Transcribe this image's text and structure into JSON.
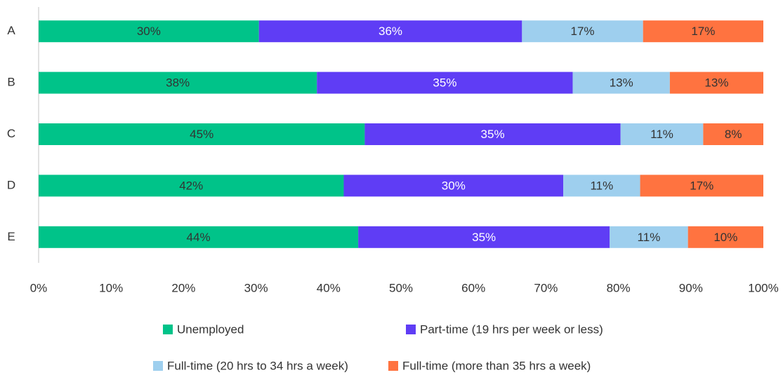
{
  "chart_data": {
    "type": "stacked-barh",
    "categories": [
      "A",
      "B",
      "C",
      "D",
      "E"
    ],
    "series": [
      {
        "name": "Unemployed",
        "color": "#00c389",
        "values": [
          30.4,
          38.4,
          45.0,
          42.1,
          44.1
        ],
        "value_labels": [
          "30%",
          "38%",
          "45%",
          "42%",
          "44%"
        ]
      },
      {
        "name": "Part-time (19 hrs per week or less)",
        "color": "#5f3df5",
        "values": [
          36.3,
          35.3,
          35.3,
          30.3,
          34.7
        ],
        "value_labels": [
          "36%",
          "35%",
          "35%",
          "30%",
          "35%"
        ]
      },
      {
        "name": "Full-time (20 hrs to 34 hrs a week)",
        "color": "#9ecfee",
        "values": [
          16.7,
          13.4,
          11.4,
          10.6,
          10.8
        ],
        "value_labels": [
          "17%",
          "13%",
          "11%",
          "11%",
          "11%"
        ]
      },
      {
        "name": "Full-time (more than 35 hrs a week)",
        "color": "#ff7340",
        "values": [
          16.6,
          12.9,
          8.3,
          17.0,
          10.4
        ],
        "value_labels": [
          "17%",
          "13%",
          "8%",
          "17%",
          "10%"
        ]
      }
    ],
    "xlim": [
      0,
      100
    ],
    "xticks": [
      {
        "value": 0,
        "label": "0%"
      },
      {
        "value": 10,
        "label": "10%"
      },
      {
        "value": 20,
        "label": "20%"
      },
      {
        "value": 30,
        "label": "30%"
      },
      {
        "value": 40,
        "label": "40%"
      },
      {
        "value": 50,
        "label": "50%"
      },
      {
        "value": 60,
        "label": "60%"
      },
      {
        "value": 70,
        "label": "70%"
      },
      {
        "value": 80,
        "label": "80%"
      },
      {
        "value": 90,
        "label": "90%"
      },
      {
        "value": 100,
        "label": "100%"
      }
    ],
    "grid": false
  }
}
